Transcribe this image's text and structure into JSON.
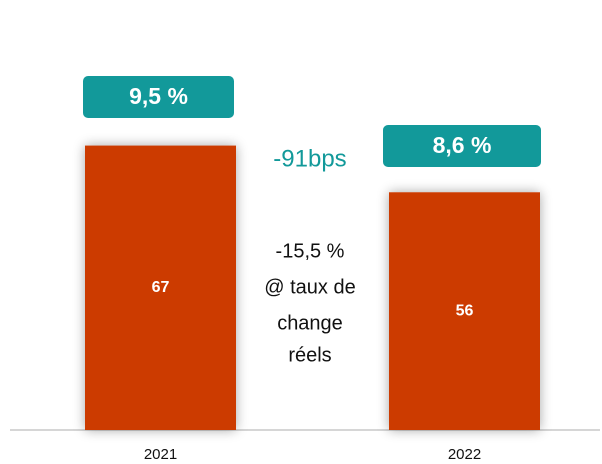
{
  "chart_data": {
    "type": "bar",
    "categories": [
      "2021",
      "2022"
    ],
    "values": [
      67,
      56
    ],
    "color": "#cc3a00",
    "annotations": {
      "margins": [
        "9,5 %",
        "8,6 %"
      ],
      "margin_color": "#12999a",
      "change": "-91bps",
      "note": [
        "-15,5 %",
        "@ taux de",
        "change",
        "réels"
      ]
    }
  }
}
